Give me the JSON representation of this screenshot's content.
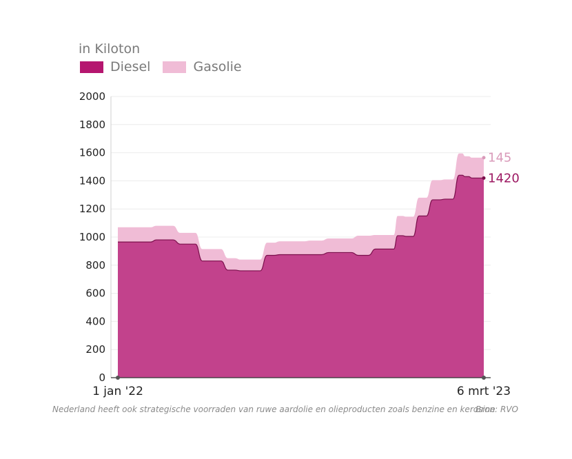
{
  "unit_label": "in Kiloton",
  "legend": [
    {
      "label": "Diesel",
      "color": "#b5166f"
    },
    {
      "label": "Gasolie",
      "color": "#f0bcd6"
    }
  ],
  "footnote": "Nederland heeft ook strategische voorraden van ruwe aardolie en olieproducten zoals benzine en kerosine",
  "source": "Bron: RVO",
  "chart_data": {
    "type": "area",
    "stacked": true,
    "ylim": [
      0,
      2000
    ],
    "yticks": [
      0,
      200,
      400,
      600,
      800,
      1000,
      1200,
      1400,
      1600,
      1800,
      2000
    ],
    "xlim": [
      "2022-01-01",
      "2023-03-06"
    ],
    "x_tick_labels": [
      "1 jan '22",
      "6 mrt '23"
    ],
    "grid": true,
    "legend_position": "top-left",
    "x": [
      "2022-01-01",
      "2022-02-01",
      "2022-02-15",
      "2022-03-15",
      "2022-04-10",
      "2022-05-10",
      "2022-05-25",
      "2022-06-25",
      "2022-07-10",
      "2022-08-15",
      "2022-09-05",
      "2022-10-10",
      "2022-10-30",
      "2022-11-15",
      "2022-11-25",
      "2022-12-05",
      "2022-12-20",
      "2023-01-05",
      "2023-01-20",
      "2023-02-05",
      "2023-02-12",
      "2023-02-20",
      "2023-03-06"
    ],
    "series": [
      {
        "name": "Diesel",
        "color": "#c2428c",
        "values": [
          965,
          965,
          980,
          950,
          830,
          765,
          760,
          870,
          875,
          875,
          890,
          870,
          915,
          915,
          1010,
          1005,
          1150,
          1265,
          1270,
          1440,
          1430,
          1420,
          1420
        ]
      },
      {
        "name": "Gasolie",
        "color": "#f0bcd6",
        "values": [
          105,
          105,
          100,
          80,
          85,
          85,
          80,
          90,
          95,
          100,
          100,
          140,
          100,
          100,
          140,
          140,
          130,
          140,
          140,
          155,
          145,
          145,
          145
        ]
      }
    ],
    "end_labels": {
      "Diesel": "1420",
      "Gasolie": "145"
    }
  }
}
